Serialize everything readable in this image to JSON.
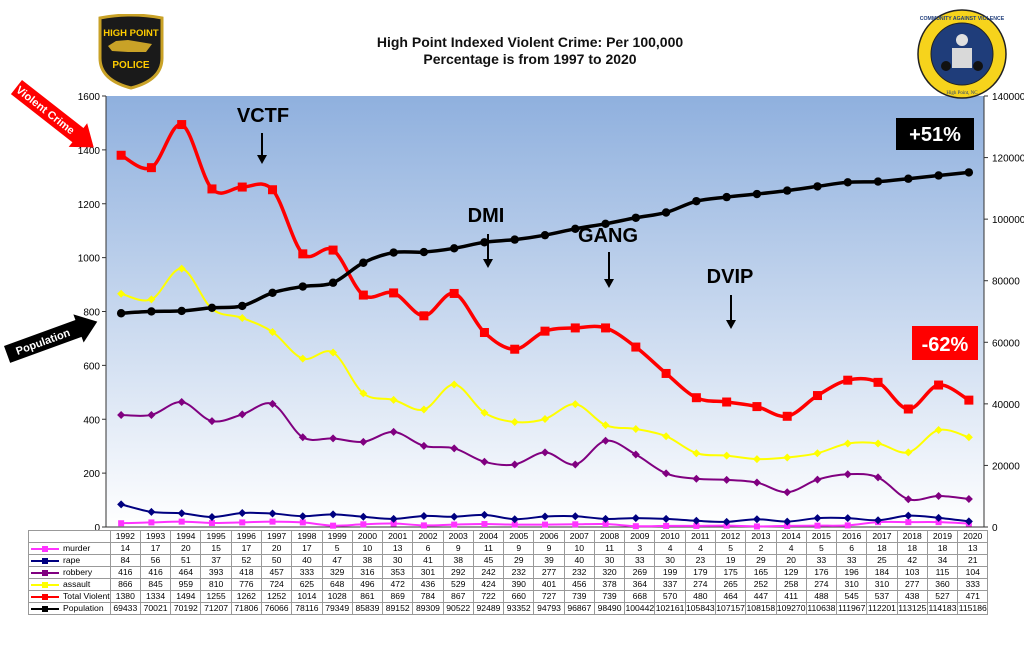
{
  "chart_data": {
    "type": "line",
    "title": "High Point Indexed Violent Crime: Per 100,000",
    "subtitle": "Percentage is from 1997 to 2020",
    "categories": [
      "1992",
      "1993",
      "1994",
      "1995",
      "1996",
      "1997",
      "1998",
      "1999",
      "2000",
      "2001",
      "2002",
      "2003",
      "2004",
      "2005",
      "2006",
      "2007",
      "2008",
      "2009",
      "2010",
      "2011",
      "2012",
      "2013",
      "2014",
      "2015",
      "2016",
      "2017",
      "2018",
      "2019",
      "2020"
    ],
    "ylim_left": [
      0,
      1600
    ],
    "yticks_left": [
      0,
      200,
      400,
      600,
      800,
      1000,
      1200,
      1400,
      1600
    ],
    "ylim_right": [
      0,
      140000
    ],
    "yticks_right": [
      0,
      20000,
      40000,
      60000,
      80000,
      100000,
      120000,
      140000
    ],
    "series": [
      {
        "name": "murder",
        "color": "#ff33ff",
        "axis": "left",
        "values": [
          14,
          17,
          20,
          15,
          17,
          20,
          17,
          5,
          10,
          13,
          6,
          9,
          11,
          9,
          9,
          10,
          11,
          3,
          4,
          4,
          5,
          2,
          4,
          5,
          6,
          18,
          18,
          18,
          13
        ]
      },
      {
        "name": "rape",
        "color": "#000080",
        "axis": "left",
        "values": [
          84,
          56,
          51,
          37,
          52,
          50,
          40,
          47,
          38,
          30,
          41,
          38,
          45,
          29,
          39,
          40,
          30,
          33,
          30,
          23,
          19,
          29,
          20,
          33,
          33,
          25,
          42,
          34,
          21
        ]
      },
      {
        "name": "robbery",
        "color": "#800080",
        "axis": "left",
        "values": [
          416,
          416,
          464,
          393,
          418,
          457,
          333,
          329,
          316,
          353,
          301,
          292,
          242,
          232,
          277,
          232,
          320,
          269,
          199,
          179,
          175,
          165,
          129,
          176,
          196,
          184,
          103,
          115,
          104
        ]
      },
      {
        "name": "assault",
        "color": "#ffff00",
        "axis": "left",
        "values": [
          866,
          845,
          959,
          810,
          776,
          724,
          625,
          648,
          496,
          472,
          436,
          529,
          424,
          390,
          401,
          456,
          378,
          364,
          337,
          274,
          265,
          252,
          258,
          274,
          310,
          310,
          277,
          360,
          333
        ]
      },
      {
        "name": "Total Violent",
        "color": "#ff0000",
        "axis": "left",
        "values": [
          1380,
          1334,
          1494,
          1255,
          1262,
          1252,
          1014,
          1028,
          861,
          869,
          784,
          867,
          722,
          660,
          727,
          739,
          739,
          668,
          570,
          480,
          464,
          447,
          411,
          488,
          545,
          537,
          438,
          527,
          471
        ]
      },
      {
        "name": "Population",
        "color": "#000000",
        "axis": "right",
        "values": [
          69433,
          70021,
          70192,
          71207,
          71806,
          76066,
          78116,
          79349,
          85839,
          89152,
          89309,
          90522,
          92489,
          93352,
          94793,
          96867,
          98490,
          100442,
          102161,
          105843,
          107157,
          108158,
          109270,
          110638,
          111967,
          112201,
          113125,
          114183,
          115186
        ]
      }
    ],
    "annotations": {
      "vctf": "VCTF",
      "dmi": "DMI",
      "gang": "GANG",
      "dvip": "DVIP",
      "pct_population": "+51%",
      "pct_violent": "-62%",
      "arrow_violent": "Violent Crime",
      "arrow_population": "Population"
    }
  },
  "logos": {
    "left": {
      "line1": "HIGH POINT",
      "line2": "POLICE"
    },
    "right": {
      "ring_text": "COMMUNITY AGAINST VIOLENCE",
      "bottom_text": "High Point, NC"
    }
  },
  "colors": {
    "plot_top": "#8fb0de",
    "plot_bottom": "#ffffff",
    "badge_black": "#000000",
    "badge_red": "#ff0000"
  }
}
